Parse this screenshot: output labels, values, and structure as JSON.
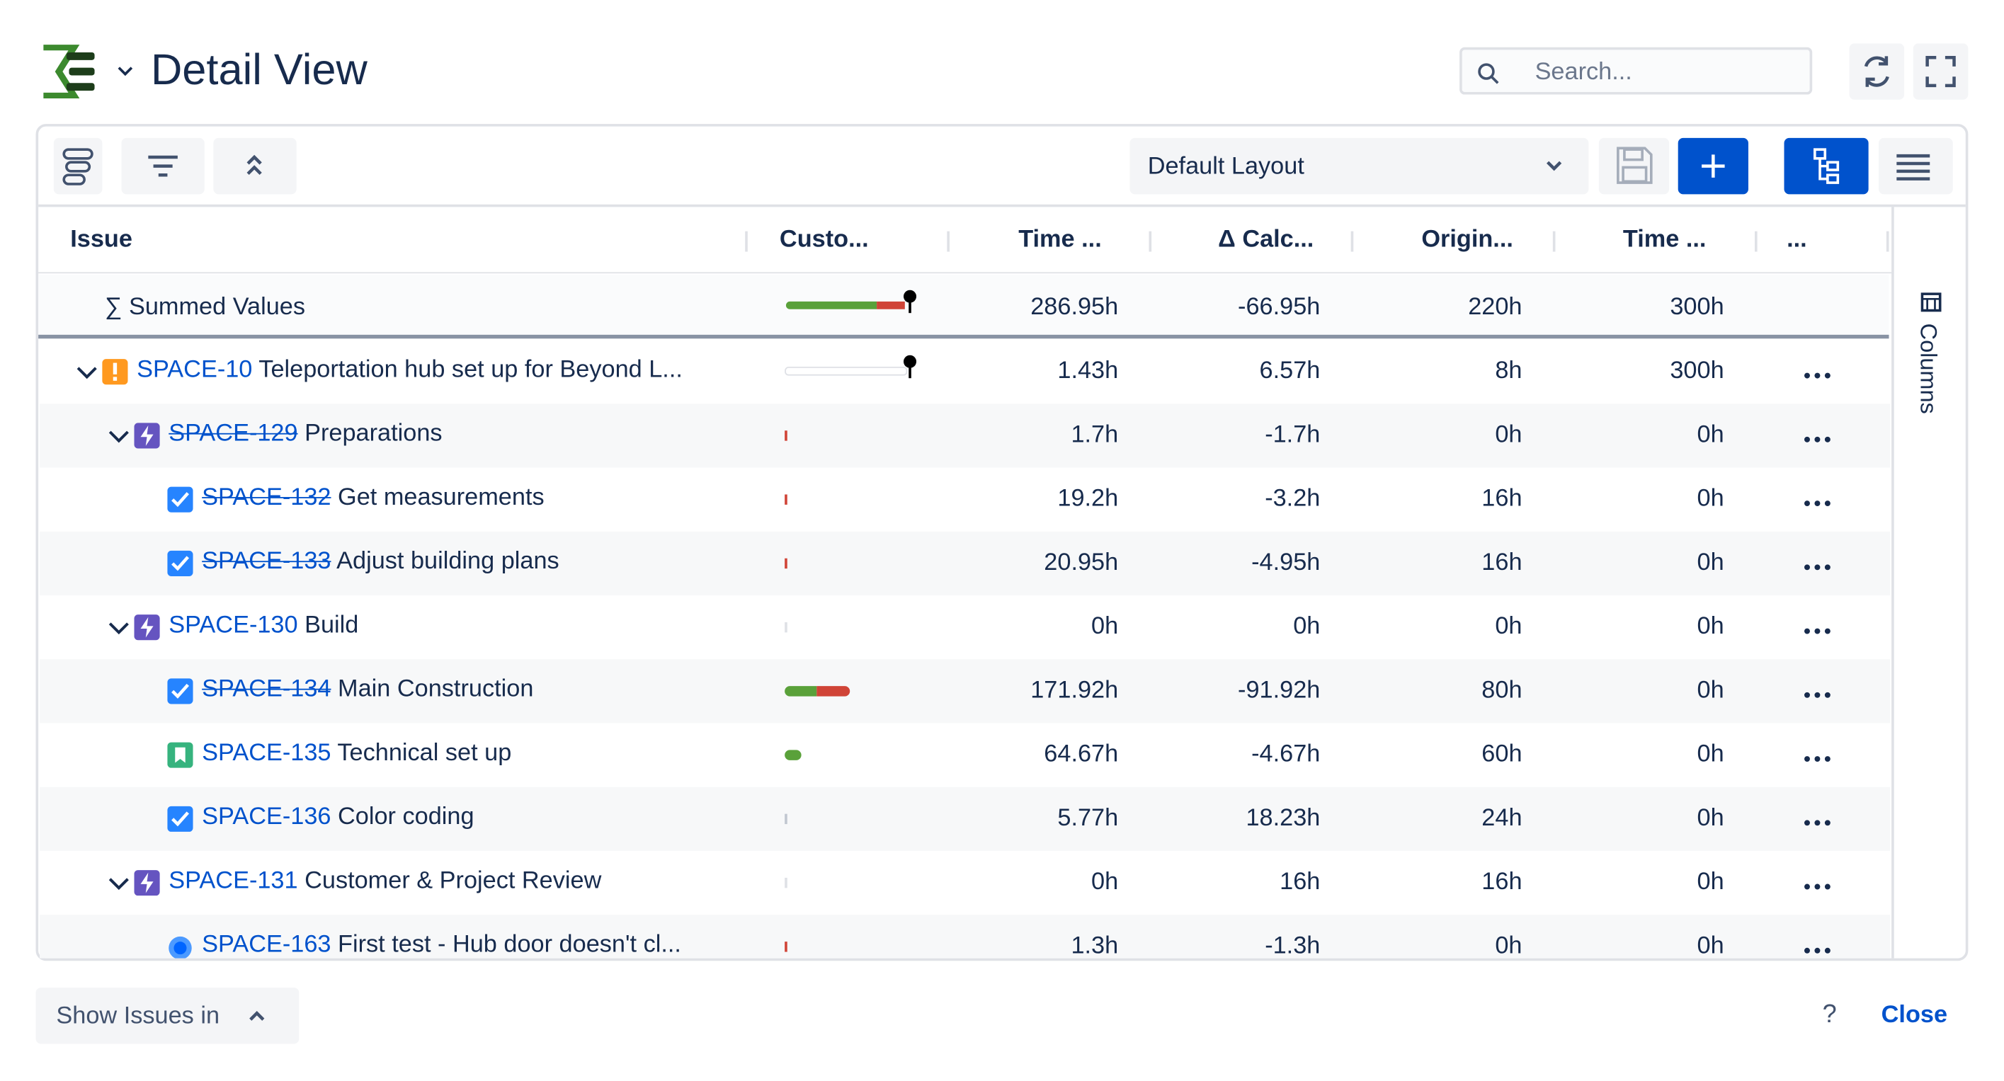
{
  "header": {
    "title": "Detail View",
    "search_placeholder": "Search..."
  },
  "toolbar": {
    "layout": "Default Layout"
  },
  "table": {
    "columns": [
      "Issue",
      "Custo...",
      "Time ...",
      "Δ Calc...",
      "Origin...",
      "Time ...",
      "..."
    ],
    "summary": {
      "label": "∑ Summed Values",
      "time_spent": "286.95h",
      "delta": "-66.95h",
      "original": "220h",
      "remaining": "300h"
    },
    "rows": [
      {
        "type": "initiative",
        "key": "SPACE-10",
        "summary": "Teleportation hub set up for Beyond L...",
        "time_spent": "1.43h",
        "delta": "6.57h",
        "original": "8h",
        "remaining": "300h",
        "children": [
          {
            "type": "epic",
            "resolved": true,
            "key": "SPACE-129",
            "summary": "Preparations",
            "time_spent": "1.7h",
            "delta": "-1.7h",
            "original": "0h",
            "remaining": "0h",
            "children": [
              {
                "type": "task",
                "resolved": true,
                "key": "SPACE-132",
                "summary": "Get measurements",
                "time_spent": "19.2h",
                "delta": "-3.2h",
                "original": "16h",
                "remaining": "0h"
              },
              {
                "type": "task",
                "resolved": true,
                "key": "SPACE-133",
                "summary": "Adjust building plans",
                "time_spent": "20.95h",
                "delta": "-4.95h",
                "original": "16h",
                "remaining": "0h"
              }
            ]
          },
          {
            "type": "epic",
            "key": "SPACE-130",
            "summary": "Build",
            "time_spent": "0h",
            "delta": "0h",
            "original": "0h",
            "remaining": "0h",
            "children": [
              {
                "type": "task",
                "resolved": true,
                "key": "SPACE-134",
                "summary": "Main Construction",
                "time_spent": "171.92h",
                "delta": "-91.92h",
                "original": "80h",
                "remaining": "0h"
              },
              {
                "type": "story",
                "key": "SPACE-135",
                "summary": "Technical set up",
                "time_spent": "64.67h",
                "delta": "-4.67h",
                "original": "60h",
                "remaining": "0h"
              },
              {
                "type": "task",
                "key": "SPACE-136",
                "summary": "Color coding",
                "time_spent": "5.77h",
                "delta": "18.23h",
                "original": "24h",
                "remaining": "0h"
              }
            ]
          },
          {
            "type": "epic",
            "key": "SPACE-131",
            "summary": "Customer & Project Review",
            "time_spent": "0h",
            "delta": "16h",
            "original": "16h",
            "remaining": "0h",
            "children": [
              {
                "type": "feedback",
                "key": "SPACE-163",
                "summary": "First test - Hub door doesn't cl...",
                "time_spent": "1.3h",
                "delta": "-1.3h",
                "original": "0h",
                "remaining": "0h"
              }
            ]
          }
        ]
      }
    ]
  },
  "side_panel": {
    "label": "Columns"
  },
  "footer": {
    "show_issues": "Show Issues in",
    "help": "?",
    "close": "Close"
  }
}
